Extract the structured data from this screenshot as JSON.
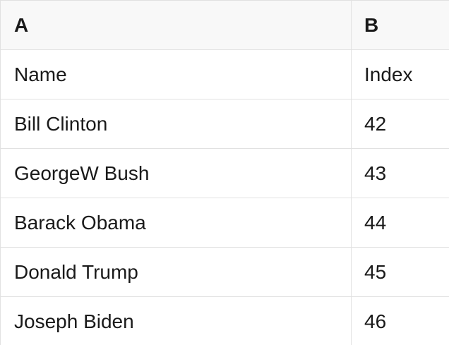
{
  "table": {
    "columns": [
      {
        "label": "A"
      },
      {
        "label": "B"
      }
    ],
    "rows": [
      {
        "cells": [
          "Name",
          "Index"
        ]
      },
      {
        "cells": [
          "Bill Clinton",
          "42"
        ]
      },
      {
        "cells": [
          "GeorgeW Bush",
          "43"
        ]
      },
      {
        "cells": [
          "Barack Obama",
          "44"
        ]
      },
      {
        "cells": [
          "Donald Trump",
          "45"
        ]
      },
      {
        "cells": [
          "Joseph Biden",
          "46"
        ]
      }
    ]
  },
  "colors": {
    "header_background": "#f8f8f8",
    "grid_line": "#e1e1e1",
    "text": "#1a1a1a",
    "cell_background": "#ffffff"
  }
}
